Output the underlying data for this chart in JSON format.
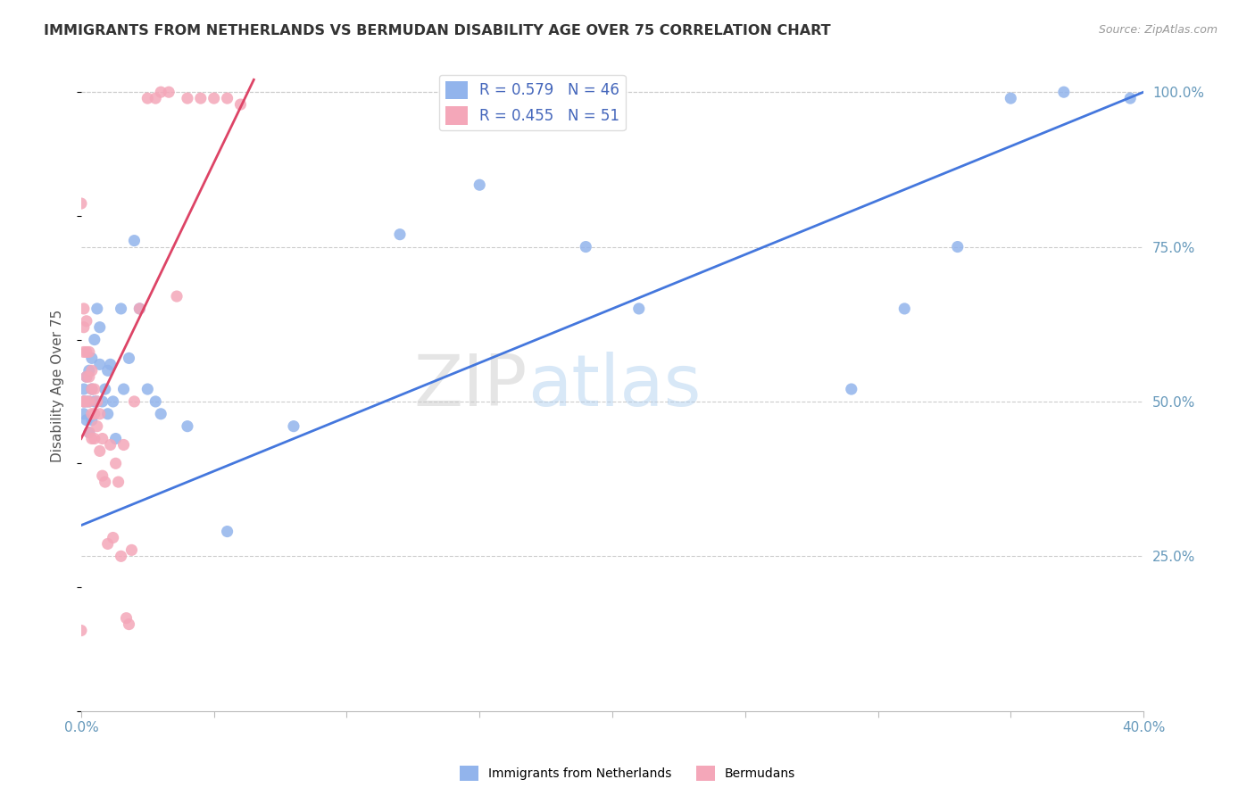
{
  "title": "IMMIGRANTS FROM NETHERLANDS VS BERMUDAN DISABILITY AGE OVER 75 CORRELATION CHART",
  "source": "Source: ZipAtlas.com",
  "ylabel": "Disability Age Over 75",
  "y_tick_labels": [
    "100.0%",
    "75.0%",
    "50.0%",
    "25.0%"
  ],
  "y_tick_values": [
    1.0,
    0.75,
    0.5,
    0.25
  ],
  "x_range": [
    0.0,
    0.4
  ],
  "y_range": [
    0.0,
    1.05
  ],
  "legend_r_blue": "R = 0.579",
  "legend_n_blue": "N = 46",
  "legend_r_pink": "R = 0.455",
  "legend_n_pink": "N = 51",
  "legend_label_blue": "Immigrants from Netherlands",
  "legend_label_pink": "Bermudans",
  "color_blue": "#92B4EC",
  "color_pink": "#F4A7B9",
  "color_blue_line": "#4477DD",
  "color_pink_line": "#DD4466",
  "watermark_zip": "ZIP",
  "watermark_atlas": "atlas",
  "blue_line_x0": 0.0,
  "blue_line_y0": 0.3,
  "blue_line_x1": 0.4,
  "blue_line_y1": 1.0,
  "pink_line_x0": 0.0,
  "pink_line_y0": 0.44,
  "pink_line_x1": 0.065,
  "pink_line_y1": 1.02,
  "blue_scatter_x": [
    0.001,
    0.001,
    0.001,
    0.002,
    0.002,
    0.002,
    0.003,
    0.003,
    0.003,
    0.004,
    0.004,
    0.004,
    0.005,
    0.005,
    0.006,
    0.006,
    0.007,
    0.007,
    0.008,
    0.009,
    0.01,
    0.01,
    0.011,
    0.012,
    0.013,
    0.015,
    0.016,
    0.018,
    0.02,
    0.022,
    0.025,
    0.028,
    0.03,
    0.04,
    0.055,
    0.08,
    0.12,
    0.15,
    0.19,
    0.21,
    0.29,
    0.31,
    0.33,
    0.35,
    0.37,
    0.395
  ],
  "blue_scatter_y": [
    0.52,
    0.5,
    0.48,
    0.54,
    0.5,
    0.47,
    0.55,
    0.5,
    0.45,
    0.57,
    0.52,
    0.47,
    0.6,
    0.5,
    0.65,
    0.5,
    0.62,
    0.56,
    0.5,
    0.52,
    0.55,
    0.48,
    0.56,
    0.5,
    0.44,
    0.65,
    0.52,
    0.57,
    0.76,
    0.65,
    0.52,
    0.5,
    0.48,
    0.46,
    0.29,
    0.46,
    0.77,
    0.85,
    0.75,
    0.65,
    0.52,
    0.65,
    0.75,
    0.99,
    1.0,
    0.99
  ],
  "pink_scatter_x": [
    0.0,
    0.0,
    0.001,
    0.001,
    0.001,
    0.001,
    0.001,
    0.002,
    0.002,
    0.002,
    0.002,
    0.003,
    0.003,
    0.003,
    0.003,
    0.004,
    0.004,
    0.004,
    0.004,
    0.005,
    0.005,
    0.005,
    0.006,
    0.006,
    0.007,
    0.007,
    0.008,
    0.008,
    0.009,
    0.01,
    0.011,
    0.012,
    0.013,
    0.014,
    0.015,
    0.016,
    0.017,
    0.018,
    0.019,
    0.02,
    0.022,
    0.025,
    0.028,
    0.03,
    0.033,
    0.036,
    0.04,
    0.045,
    0.05,
    0.055,
    0.06
  ],
  "pink_scatter_y": [
    0.82,
    0.13,
    0.65,
    0.62,
    0.58,
    0.5,
    0.5,
    0.63,
    0.58,
    0.54,
    0.5,
    0.58,
    0.54,
    0.5,
    0.45,
    0.55,
    0.52,
    0.48,
    0.44,
    0.52,
    0.48,
    0.44,
    0.5,
    0.46,
    0.48,
    0.42,
    0.44,
    0.38,
    0.37,
    0.27,
    0.43,
    0.28,
    0.4,
    0.37,
    0.25,
    0.43,
    0.15,
    0.14,
    0.26,
    0.5,
    0.65,
    0.99,
    0.99,
    1.0,
    1.0,
    0.67,
    0.99,
    0.99,
    0.99,
    0.99,
    0.98
  ]
}
